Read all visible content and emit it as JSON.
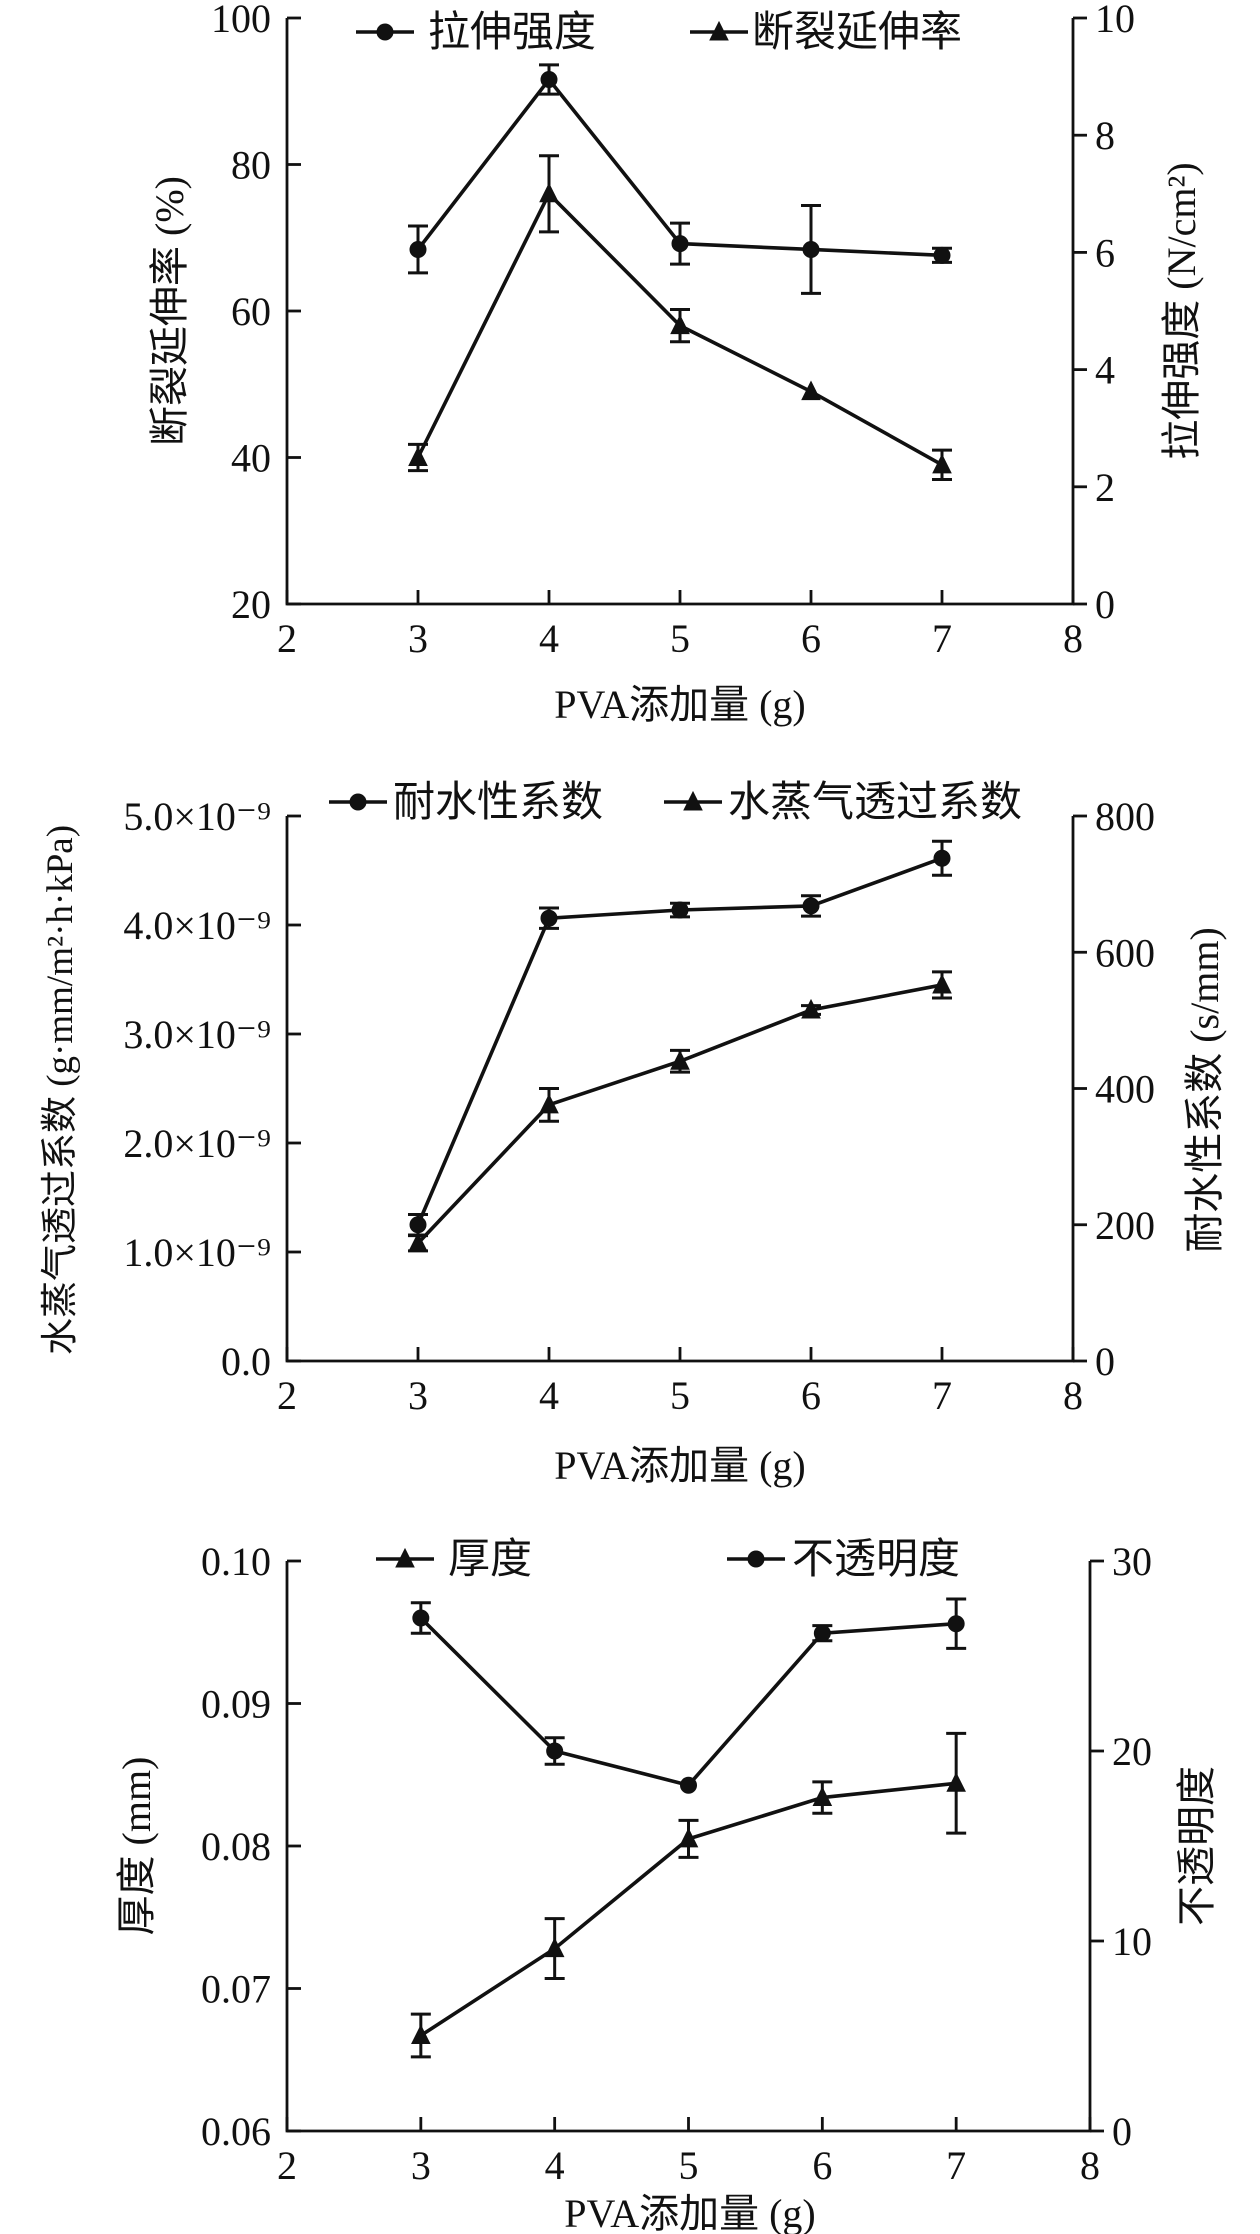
{
  "chart_data": [
    {
      "type": "line",
      "xlabel": "PVA添加量 (g)",
      "xlim": [
        2,
        8
      ],
      "xticks": [
        "2",
        "3",
        "4",
        "5",
        "6",
        "7",
        "8"
      ],
      "ylabel_left": "断裂延伸率 (%)",
      "ylim_left": [
        20,
        100
      ],
      "yticks_left": [
        "20",
        "40",
        "60",
        "80",
        "100"
      ],
      "ylabel_right": "拉伸强度 (N/cm²)",
      "ylim_right": [
        0,
        10
      ],
      "yticks_right": [
        "0",
        "2",
        "4",
        "6",
        "8",
        "10"
      ],
      "series": [
        {
          "name": "拉伸强度",
          "marker": "circle",
          "axis": "right",
          "x": [
            3,
            4,
            5,
            6,
            7
          ],
          "values": [
            6.05,
            8.95,
            6.15,
            6.05,
            5.95
          ],
          "errors": [
            0.4,
            0.25,
            0.35,
            0.75,
            0.12
          ]
        },
        {
          "name": "断裂延伸率",
          "marker": "triangle",
          "axis": "left",
          "x": [
            3,
            4,
            5,
            6,
            7
          ],
          "values": [
            40,
            76,
            58,
            49,
            39
          ],
          "errors": [
            1.8,
            5.2,
            2.2,
            0,
            2.0
          ]
        }
      ]
    },
    {
      "type": "line",
      "xlabel": "PVA添加量 (g)",
      "xlim": [
        2,
        8
      ],
      "xticks": [
        "2",
        "3",
        "4",
        "5",
        "6",
        "7",
        "8"
      ],
      "ylabel_left": "水蒸气透过系数 (g·mm/m²·h·kPa)",
      "ylim_left": [
        0,
        5e-09
      ],
      "yticks_left": [
        "0.0",
        "1.0×10⁻⁹",
        "2.0×10⁻⁹",
        "3.0×10⁻⁹",
        "4.0×10⁻⁹",
        "5.0×10⁻⁹"
      ],
      "ylabel_right": "耐水性系数 (s/mm)",
      "ylim_right": [
        0,
        800
      ],
      "yticks_right": [
        "0",
        "200",
        "400",
        "600",
        "800"
      ],
      "series": [
        {
          "name": "耐水性系数",
          "marker": "circle",
          "axis": "right",
          "x": [
            3,
            4,
            5,
            6,
            7
          ],
          "values": [
            200,
            650,
            662,
            668,
            738
          ],
          "errors": [
            15,
            15,
            10,
            15,
            25
          ]
        },
        {
          "name": "水蒸气透过系数",
          "marker": "triangle",
          "axis": "left",
          "x": [
            3,
            4,
            5,
            6,
            7
          ],
          "values": [
            1.08e-09,
            2.35e-09,
            2.75e-09,
            3.22e-09,
            3.45e-09
          ],
          "errors": [
            7e-11,
            1.5e-10,
            1e-10,
            4e-11,
            1.2e-10
          ]
        }
      ]
    },
    {
      "type": "line",
      "xlabel": "PVA添加量 (g)",
      "xlim": [
        2,
        8
      ],
      "xticks": [
        "2",
        "3",
        "4",
        "5",
        "6",
        "7",
        "8"
      ],
      "ylabel_left": "厚度 (mm)",
      "ylim_left": [
        0.06,
        0.1
      ],
      "yticks_left": [
        "0.06",
        "0.07",
        "0.08",
        "0.09",
        "0.10"
      ],
      "ylabel_right": "不透明度",
      "ylim_right": [
        0,
        30
      ],
      "yticks_right": [
        "0",
        "10",
        "20",
        "30"
      ],
      "series": [
        {
          "name": "厚度",
          "marker": "triangle",
          "axis": "left",
          "x": [
            3,
            4,
            5,
            6,
            7
          ],
          "values": [
            0.0667,
            0.0728,
            0.0805,
            0.0834,
            0.0844
          ],
          "errors": [
            0.0015,
            0.0021,
            0.0013,
            0.0011,
            0.0035
          ]
        },
        {
          "name": "不透明度",
          "marker": "circle",
          "axis": "right",
          "x": [
            3,
            4,
            5,
            6,
            7
          ],
          "values": [
            27.0,
            20.0,
            18.2,
            26.2,
            26.7
          ],
          "errors": [
            0.8,
            0.7,
            0,
            0.4,
            1.3
          ]
        }
      ]
    }
  ]
}
